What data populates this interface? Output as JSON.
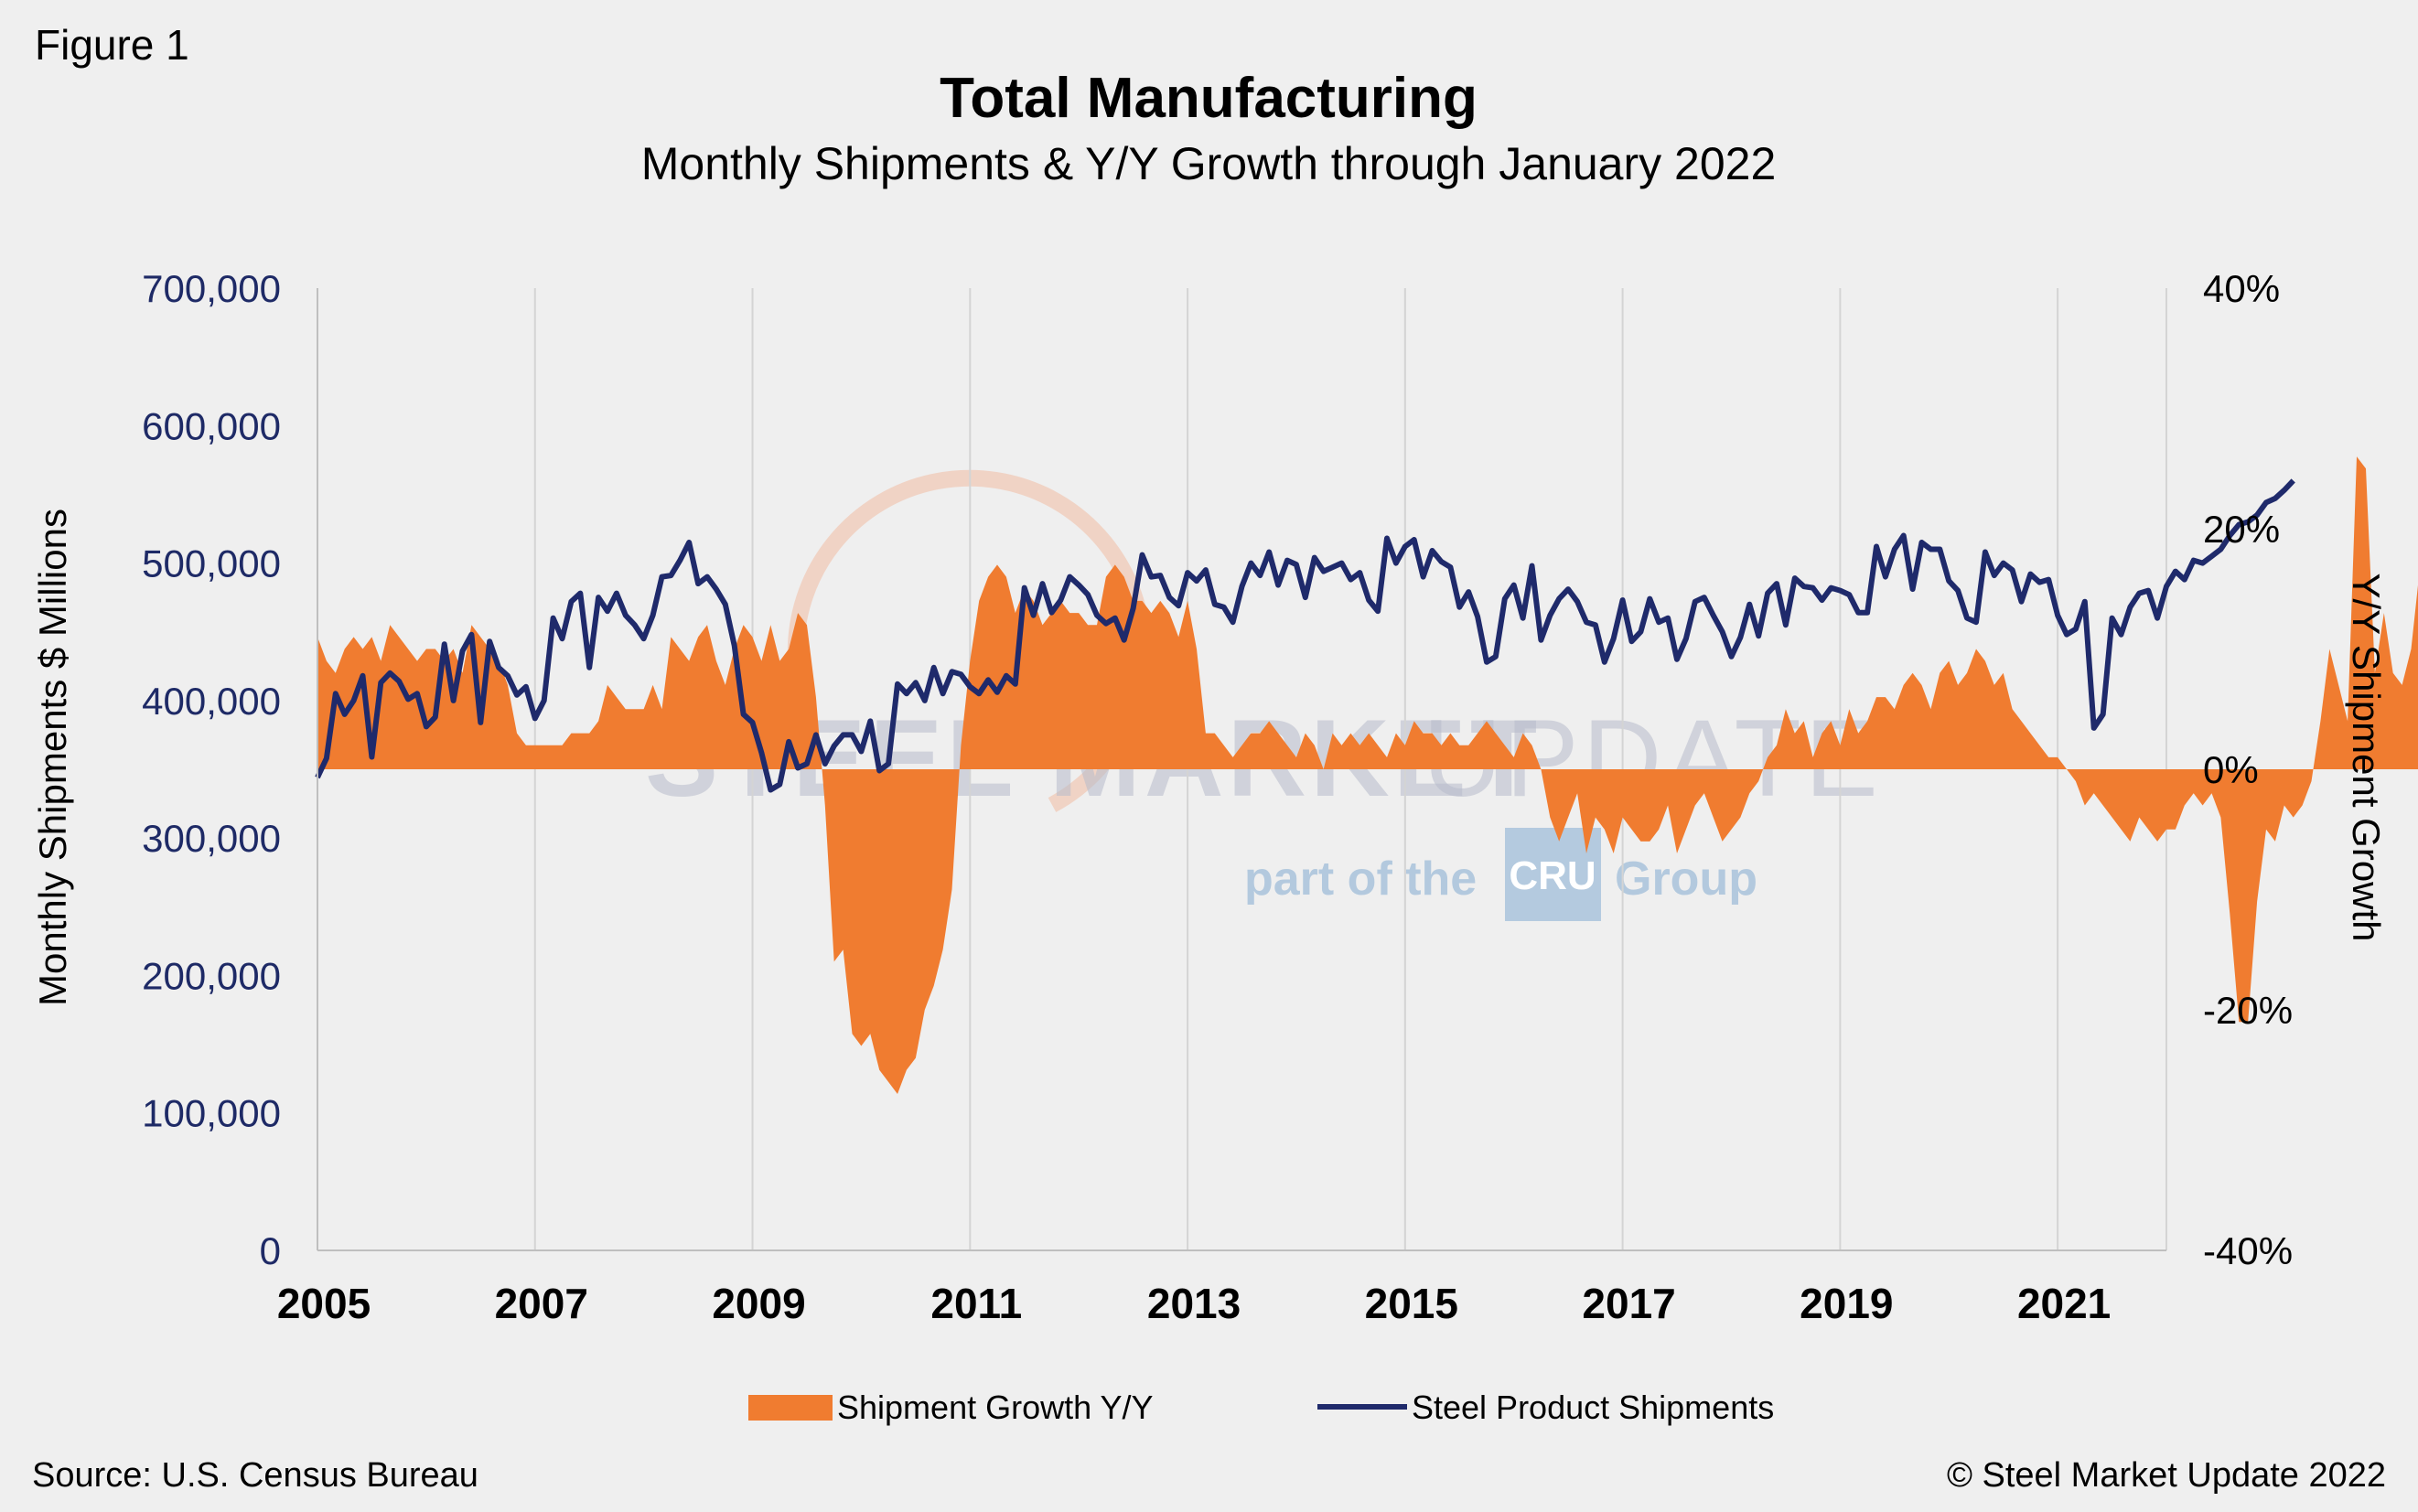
{
  "figure_label": "Figure 1",
  "source": "Source: U.S. Census Bureau",
  "copyright": "© Steel Market Update 2022",
  "watermark": {
    "brand_bold": "STEEL MARKET",
    "brand_light": "UPDATE",
    "sub_before": "part of the",
    "sub_logo": "CRU",
    "sub_after": "Group"
  },
  "colors": {
    "growth_area": "#f07c30",
    "shipments_line": "#1f2a6b",
    "gridline": "#d4d4d4",
    "left_tick_text": "#1e2a66"
  },
  "chart_data": {
    "type": "line",
    "title": "Total Manufacturing",
    "subtitle": "Monthly Shipments & Y/Y Growth through January 2022",
    "ylabel": "Monthly Shipments $ Millions",
    "y2label": "Y/Y Shipment Growth",
    "ylim": [
      0,
      700000
    ],
    "y2lim": [
      -40,
      40
    ],
    "yticks": [
      "700,000",
      "600,000",
      "500,000",
      "400,000",
      "300,000",
      "200,000",
      "100,000",
      "0"
    ],
    "y2ticks": [
      "40%",
      "20%",
      "0%",
      "-20%",
      "-40%"
    ],
    "xlim": [
      2005.0,
      2022.0
    ],
    "xticks": [
      "2005",
      "2007",
      "2009",
      "2011",
      "2013",
      "2015",
      "2017",
      "2019",
      "2021"
    ],
    "grid": "vertical",
    "legend_position": "bottom",
    "series": [
      {
        "name": "Shipment Growth Y/Y",
        "kind": "area",
        "axis": "right",
        "unit": "%",
        "x_start": "2005-01",
        "step": "month",
        "values": [
          11,
          9,
          8,
          10,
          11,
          10,
          11,
          9,
          12,
          11,
          10,
          9,
          10,
          10,
          9,
          10,
          8,
          12,
          11,
          10,
          9,
          7,
          3,
          2,
          2,
          2,
          2,
          2,
          3,
          3,
          3,
          4,
          7,
          6,
          5,
          5,
          5,
          7,
          5,
          11,
          10,
          9,
          11,
          12,
          9,
          7,
          10,
          12,
          11,
          9,
          12,
          9,
          10,
          13,
          12,
          6,
          -3,
          -16,
          -15,
          -22,
          -23,
          -22,
          -25,
          -26,
          -27,
          -25,
          -24,
          -20,
          -18,
          -15,
          -10,
          2,
          9,
          14,
          16,
          17,
          16,
          13,
          15,
          14,
          12,
          13,
          14,
          13,
          13,
          12,
          12,
          16,
          17,
          16,
          14,
          14,
          13,
          14,
          13,
          11,
          14,
          10,
          3,
          3,
          2,
          1,
          2,
          3,
          3,
          4,
          3,
          2,
          1,
          3,
          2,
          0,
          3,
          2,
          3,
          2,
          3,
          2,
          1,
          3,
          2,
          4,
          3,
          3,
          2,
          3,
          2,
          2,
          3,
          4,
          3,
          2,
          1,
          3,
          2,
          0,
          -4,
          -6,
          -4,
          -2,
          -7,
          -4,
          -5,
          -7,
          -4,
          -5,
          -6,
          -6,
          -5,
          -3,
          -7,
          -5,
          -3,
          -2,
          -4,
          -6,
          -5,
          -4,
          -2,
          -1,
          1,
          2,
          5,
          3,
          4,
          1,
          3,
          4,
          2,
          5,
          3,
          4,
          6,
          6,
          5,
          7,
          8,
          7,
          5,
          8,
          9,
          7,
          8,
          10,
          9,
          7,
          8,
          5,
          4,
          3,
          2,
          1,
          1,
          0,
          -1,
          -3,
          -2,
          -3,
          -4,
          -5,
          -6,
          -4,
          -5,
          -6,
          -5,
          -5,
          -3,
          -2,
          -3,
          -2,
          -4,
          -12,
          -21,
          -21,
          -11,
          -5,
          -6,
          -3,
          -4,
          -3,
          -1,
          4,
          10,
          7,
          4,
          26,
          25,
          8,
          13,
          8,
          7,
          10,
          17,
          13,
          11
        ]
      },
      {
        "name": "Steel Product Shipments",
        "kind": "line",
        "axis": "left",
        "unit": "$ millions",
        "x_start": "2005-01",
        "step": "month",
        "values": [
          344000,
          358000,
          405000,
          390000,
          400000,
          418000,
          359000,
          413000,
          420000,
          414000,
          401000,
          405000,
          381000,
          388000,
          441000,
          400000,
          436000,
          448000,
          384000,
          443000,
          424000,
          418000,
          404000,
          410000,
          387000,
          400000,
          460000,
          445000,
          472000,
          478000,
          424000,
          475000,
          465000,
          478000,
          462000,
          455000,
          445000,
          462000,
          490000,
          491000,
          502000,
          515000,
          485000,
          490000,
          481000,
          470000,
          440000,
          390000,
          384000,
          362000,
          335000,
          339000,
          370000,
          351000,
          354000,
          375000,
          354000,
          367000,
          375000,
          375000,
          363000,
          385000,
          349000,
          354000,
          412000,
          405000,
          413000,
          400000,
          424000,
          405000,
          421000,
          419000,
          410000,
          405000,
          415000,
          406000,
          418000,
          412000,
          482000,
          462000,
          485000,
          464000,
          473000,
          490000,
          484000,
          477000,
          462000,
          456000,
          460000,
          444000,
          467000,
          506000,
          490000,
          491000,
          475000,
          469000,
          493000,
          487000,
          495000,
          470000,
          468000,
          457000,
          483000,
          500000,
          491000,
          508000,
          484000,
          502000,
          499000,
          475000,
          504000,
          494000,
          497000,
          500000,
          488000,
          493000,
          473000,
          465000,
          518000,
          500000,
          512000,
          517000,
          490000,
          509000,
          501000,
          497000,
          468000,
          479000,
          461000,
          428000,
          432000,
          474000,
          484000,
          460000,
          498000,
          444000,
          462000,
          474000,
          481000,
          472000,
          457000,
          455000,
          428000,
          445000,
          473000,
          443000,
          450000,
          474000,
          457000,
          460000,
          430000,
          445000,
          472000,
          475000,
          462000,
          450000,
          432000,
          446000,
          470000,
          447000,
          478000,
          485000,
          455000,
          489000,
          483000,
          482000,
          473000,
          482000,
          480000,
          477000,
          464000,
          464000,
          512000,
          490000,
          510000,
          520000,
          481000,
          515000,
          510000,
          510000,
          487000,
          480000,
          460000,
          457000,
          508000,
          491000,
          500000,
          495000,
          472000,
          492000,
          486000,
          488000,
          462000,
          448000,
          452000,
          472000,
          380000,
          390000,
          460000,
          448000,
          468000,
          478000,
          480000,
          460000,
          483000,
          494000,
          488000,
          502000,
          500000,
          505000,
          510000,
          520000,
          528000,
          530000,
          535000,
          544000,
          547000,
          553000,
          560000
        ]
      }
    ]
  }
}
